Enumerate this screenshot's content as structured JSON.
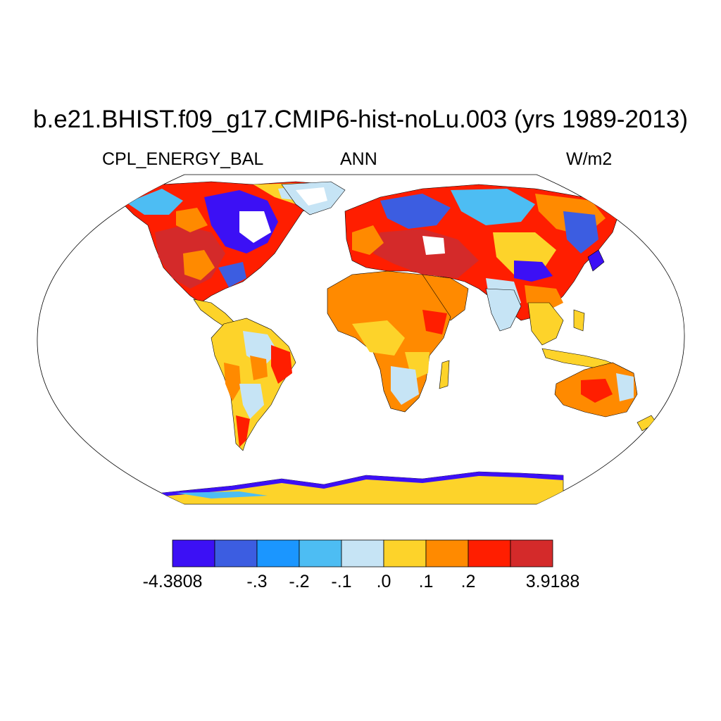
{
  "figure": {
    "title": "b.e21.BHIST.f09_g17.CMIP6-hist-noLu.003 (yrs 1989-2013)",
    "left_label": "CPL_ENERGY_BAL",
    "center_label": "ANN",
    "right_label": "W/m2"
  },
  "map": {
    "projection": "Robinson",
    "field": "annual mean coupler energy balance over land",
    "ocean_color": "#ffffff",
    "coastline_color": "#000000"
  },
  "colorbar": {
    "colors": [
      "#3c10f5",
      "#3c5de1",
      "#1b96ff",
      "#4dbdf3",
      "#c6e4f5",
      "#fdd32a",
      "#ff8a00",
      "#ff1e00",
      "#d42a2a"
    ],
    "labels": [
      "-4.3808",
      "-.3",
      "-.2",
      "-.1",
      ".0",
      ".1",
      ".2",
      "3.9188"
    ]
  }
}
